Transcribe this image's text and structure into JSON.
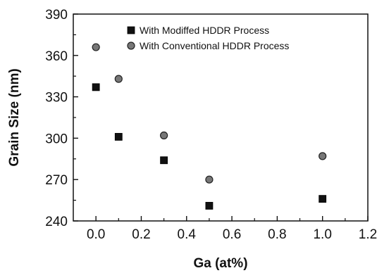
{
  "chart_data": {
    "type": "scatter",
    "title": "",
    "xlabel": "Ga (at%)",
    "ylabel": "Grain Size (nm)",
    "xlim": [
      -0.1,
      1.2
    ],
    "ylim": [
      240,
      390
    ],
    "xticks": [
      0.0,
      0.2,
      0.4,
      0.6,
      0.8,
      1.0,
      1.2
    ],
    "xtick_labels": [
      "0.0",
      "0.2",
      "0.4",
      "0.6",
      "0.8",
      "1.0",
      "1.2"
    ],
    "yticks": [
      240,
      270,
      300,
      330,
      360,
      390
    ],
    "ytick_labels": [
      "240",
      "270",
      "300",
      "330",
      "360",
      "390"
    ],
    "grid": false,
    "legend_position": "top-right",
    "series": [
      {
        "name": "With Modiffed HDDR Process",
        "marker": "square",
        "color": "#111111",
        "x": [
          0.0,
          0.1,
          0.3,
          0.5,
          1.0
        ],
        "y": [
          337,
          301,
          284,
          251,
          256
        ]
      },
      {
        "name": "With Conventional HDDR Process",
        "marker": "circle",
        "color": "#777777",
        "x": [
          0.0,
          0.1,
          0.3,
          0.5,
          1.0
        ],
        "y": [
          366,
          343,
          302,
          270,
          287
        ]
      }
    ]
  }
}
